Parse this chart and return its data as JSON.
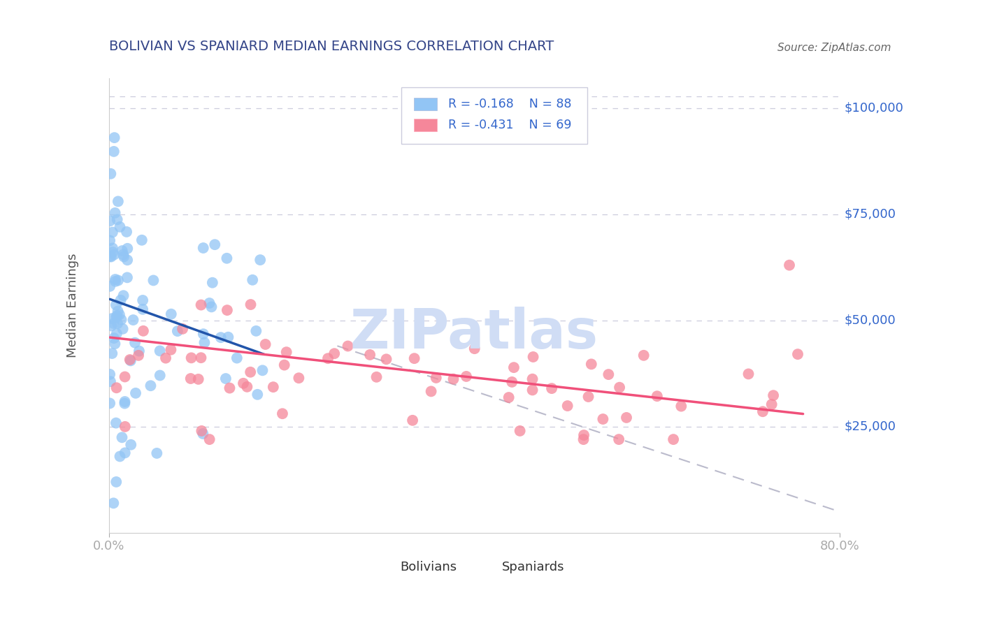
{
  "title": "BOLIVIAN VS SPANIARD MEDIAN EARNINGS CORRELATION CHART",
  "source": "Source: ZipAtlas.com",
  "ylabel": "Median Earnings",
  "y_ticks": [
    25000,
    50000,
    75000,
    100000
  ],
  "y_tick_labels": [
    "$25,000",
    "$50,000",
    "$75,000",
    "$100,000"
  ],
  "x_min": 0.0,
  "x_max": 0.8,
  "y_min": 0,
  "y_max": 107000,
  "bolivian_color": "#92C5F5",
  "spaniard_color": "#F5879A",
  "bolivian_line_color": "#2255AA",
  "spaniard_line_color": "#F0507A",
  "dashed_line_color": "#BBBBCC",
  "title_color": "#334488",
  "axis_label_color": "#3366CC",
  "ylabel_color": "#555555",
  "source_color": "#666666",
  "watermark_color": "#D0DDF5",
  "background_color": "#FFFFFF",
  "grid_color": "#CCCCDD",
  "legend_text_color": "#3366CC",
  "legend_R_color": "#3366CC",
  "bottom_label_color": "#333333",
  "bolivian_R": -0.168,
  "bolivian_N": 88,
  "spaniard_R": -0.431,
  "spaniard_N": 69,
  "bolivian_line_x": [
    0.001,
    0.17
  ],
  "bolivian_line_y": [
    55000,
    42000
  ],
  "spaniard_line_x": [
    0.001,
    0.76
  ],
  "spaniard_line_y": [
    46000,
    28000
  ],
  "dashed_line_x": [
    0.25,
    0.8
  ],
  "dashed_line_y": [
    44000,
    5000
  ]
}
